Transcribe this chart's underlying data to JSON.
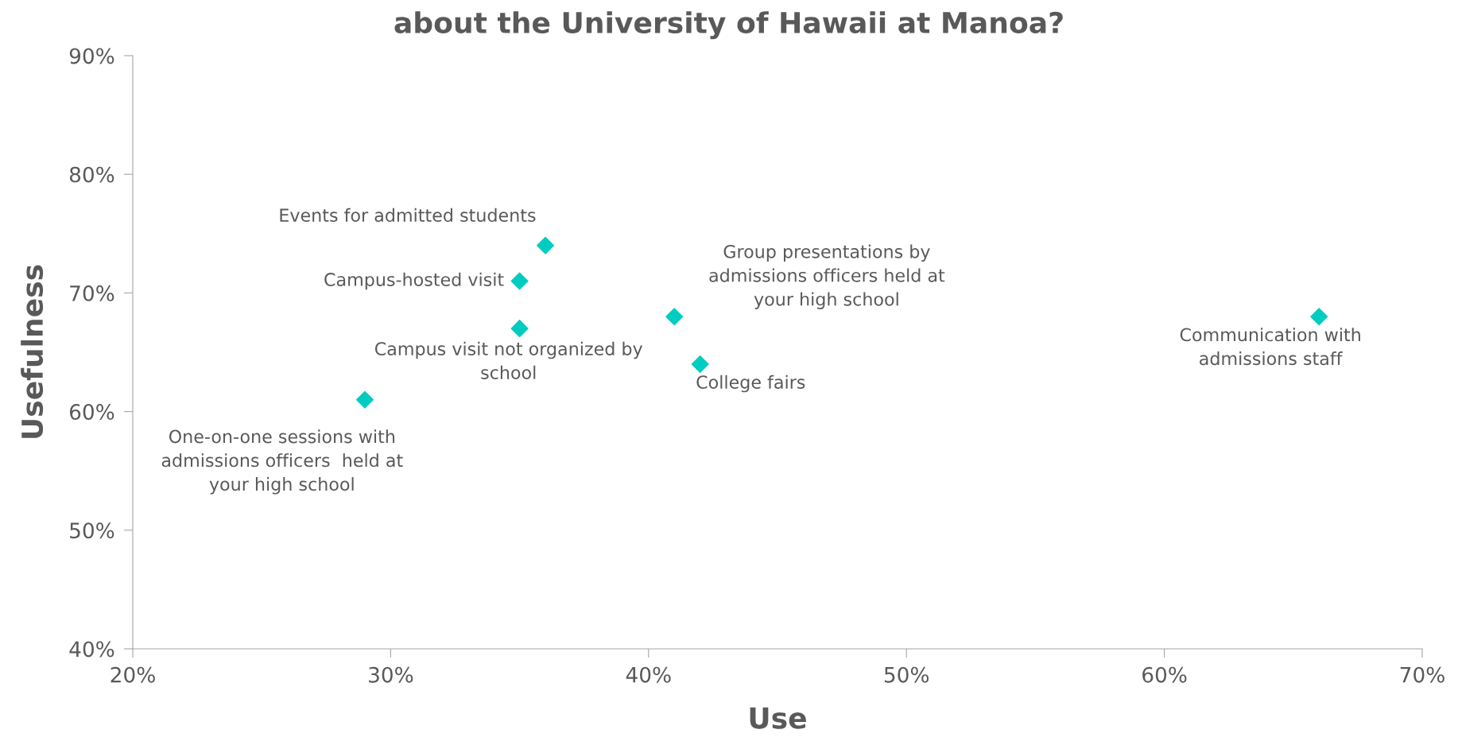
{
  "chart_data": {
    "type": "scatter",
    "title": "about the University of Hawaii at Manoa?",
    "xlabel": "Use",
    "ylabel": "Usefulness",
    "x": [
      29,
      35,
      35,
      36,
      41,
      42,
      66
    ],
    "series": [
      {
        "color": "#00cdc0",
        "values": [
          61,
          67,
          71,
          74,
          68,
          64,
          68
        ]
      }
    ],
    "marker": "diamond",
    "grid": false,
    "legend": false,
    "xlim": [
      20,
      70
    ],
    "xticks": [
      {
        "value": 20,
        "label": "20%"
      },
      {
        "value": 30,
        "label": "30%"
      },
      {
        "value": 40,
        "label": "40%"
      },
      {
        "value": 50,
        "label": "50%"
      },
      {
        "value": 60,
        "label": "60%"
      },
      {
        "value": 70,
        "label": "70%"
      }
    ],
    "ylim": [
      40,
      90
    ],
    "yticks": [
      {
        "value": 40,
        "label": "40%"
      },
      {
        "value": 50,
        "label": "50%"
      },
      {
        "value": 60,
        "label": "60%"
      },
      {
        "value": 70,
        "label": "70%"
      },
      {
        "value": 80,
        "label": "80%"
      },
      {
        "value": 90,
        "label": "90%"
      }
    ],
    "annotations": [
      {
        "text": "One-on-one sessions with\nadmissions officers  held at\nyour high school",
        "x": 29,
        "y": 61
      },
      {
        "text": "Campus visit not organized by\nschool",
        "x": 35,
        "y": 67
      },
      {
        "text": "Campus-hosted visit",
        "x": 35,
        "y": 71
      },
      {
        "text": "Events for admitted students",
        "x": 36,
        "y": 74
      },
      {
        "text": "Group presentations by\nadmissions officers held at\nyour high school",
        "x": 41,
        "y": 68
      },
      {
        "text": "College fairs",
        "x": 42,
        "y": 64
      },
      {
        "text": "Communication with\nadmissions staff",
        "x": 66,
        "y": 68
      }
    ]
  }
}
